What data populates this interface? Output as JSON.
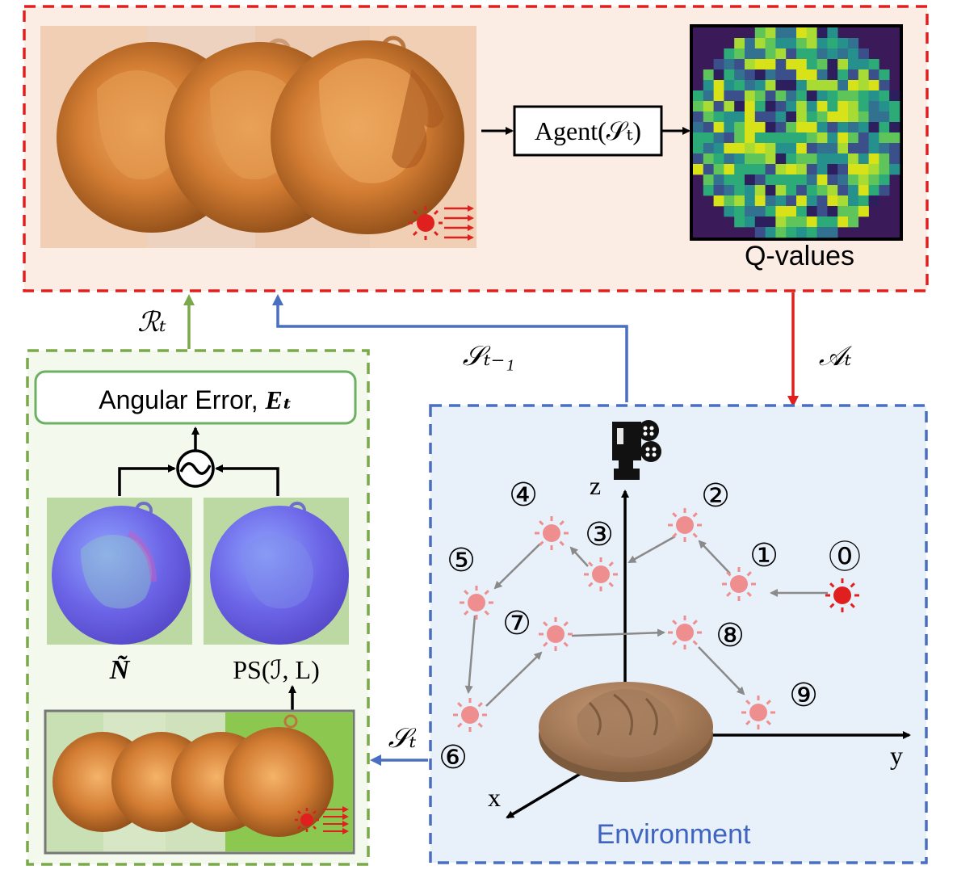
{
  "top": {
    "agent_label": "Agent(𝒮ₜ)",
    "qvalues_label": "Q-values"
  },
  "arrows": {
    "reward_label": "ℛₜ",
    "prev_state_label": "𝒮ₜ₋₁",
    "action_label": "𝒜ₜ",
    "state_label": "𝒮ₜ"
  },
  "left_panel": {
    "angular_error_label": "Angular Error, ",
    "angular_error_symbol": "Eₜ",
    "normal_gt_label": "Ñ",
    "ps_label": "PS(ℐ, L)"
  },
  "environment": {
    "title": "Environment",
    "axis_x": "x",
    "axis_y": "y",
    "axis_z": "z",
    "light_numbers": [
      "⓪",
      "①",
      "②",
      "③",
      "④",
      "⑤",
      "⑥",
      "⑦",
      "⑧",
      "⑨"
    ]
  },
  "colors": {
    "red_dashed": "#e0201e",
    "green_dashed": "#7aa84a",
    "blue_dashed": "#4a6fc1",
    "light_pink": "#ee8e8e",
    "light_red": "#e0201e",
    "environment_text": "#3f63c0"
  }
}
